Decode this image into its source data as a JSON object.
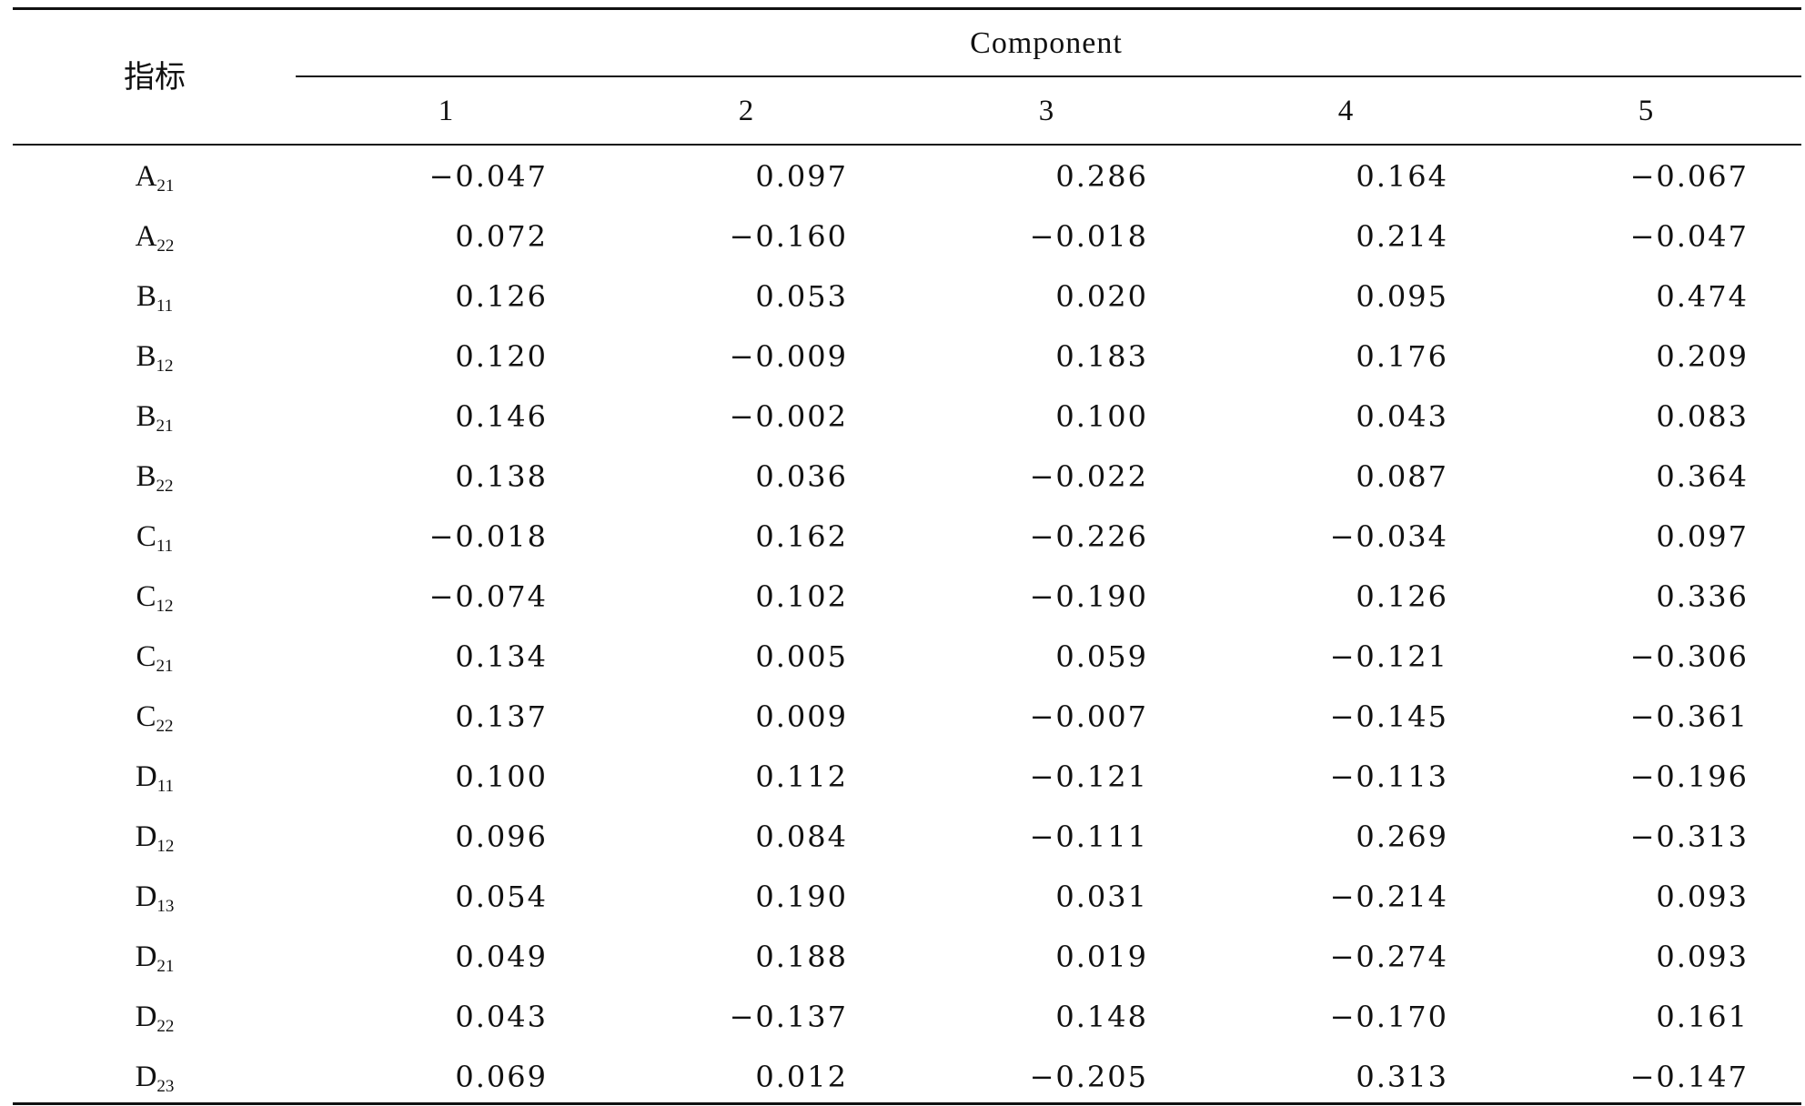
{
  "table": {
    "header_label": "指标",
    "group_header": "Component",
    "columns": [
      "1",
      "2",
      "3",
      "4",
      "5"
    ],
    "rows": [
      {
        "base": "A",
        "sub": "21",
        "values": [
          "−0.047",
          "0.097",
          "0.286",
          "0.164",
          "−0.067"
        ]
      },
      {
        "base": "A",
        "sub": "22",
        "values": [
          "0.072",
          "−0.160",
          "−0.018",
          "0.214",
          "−0.047"
        ]
      },
      {
        "base": "B",
        "sub": "11",
        "values": [
          "0.126",
          "0.053",
          "0.020",
          "0.095",
          "0.474"
        ]
      },
      {
        "base": "B",
        "sub": "12",
        "values": [
          "0.120",
          "−0.009",
          "0.183",
          "0.176",
          "0.209"
        ]
      },
      {
        "base": "B",
        "sub": "21",
        "values": [
          "0.146",
          "−0.002",
          "0.100",
          "0.043",
          "0.083"
        ]
      },
      {
        "base": "B",
        "sub": "22",
        "values": [
          "0.138",
          "0.036",
          "−0.022",
          "0.087",
          "0.364"
        ]
      },
      {
        "base": "C",
        "sub": "11",
        "values": [
          "−0.018",
          "0.162",
          "−0.226",
          "−0.034",
          "0.097"
        ]
      },
      {
        "base": "C",
        "sub": "12",
        "values": [
          "−0.074",
          "0.102",
          "−0.190",
          "0.126",
          "0.336"
        ]
      },
      {
        "base": "C",
        "sub": "21",
        "values": [
          "0.134",
          "0.005",
          "0.059",
          "−0.121",
          "−0.306"
        ]
      },
      {
        "base": "C",
        "sub": "22",
        "values": [
          "0.137",
          "0.009",
          "−0.007",
          "−0.145",
          "−0.361"
        ]
      },
      {
        "base": "D",
        "sub": "11",
        "values": [
          "0.100",
          "0.112",
          "−0.121",
          "−0.113",
          "−0.196"
        ]
      },
      {
        "base": "D",
        "sub": "12",
        "values": [
          "0.096",
          "0.084",
          "−0.111",
          "0.269",
          "−0.313"
        ]
      },
      {
        "base": "D",
        "sub": "13",
        "values": [
          "0.054",
          "0.190",
          "0.031",
          "−0.214",
          "0.093"
        ]
      },
      {
        "base": "D",
        "sub": "21",
        "values": [
          "0.049",
          "0.188",
          "0.019",
          "−0.274",
          "0.093"
        ]
      },
      {
        "base": "D",
        "sub": "22",
        "values": [
          "0.043",
          "−0.137",
          "0.148",
          "−0.170",
          "0.161"
        ]
      },
      {
        "base": "D",
        "sub": "23",
        "values": [
          "0.069",
          "0.012",
          "−0.205",
          "0.313",
          "−0.147"
        ]
      }
    ]
  }
}
